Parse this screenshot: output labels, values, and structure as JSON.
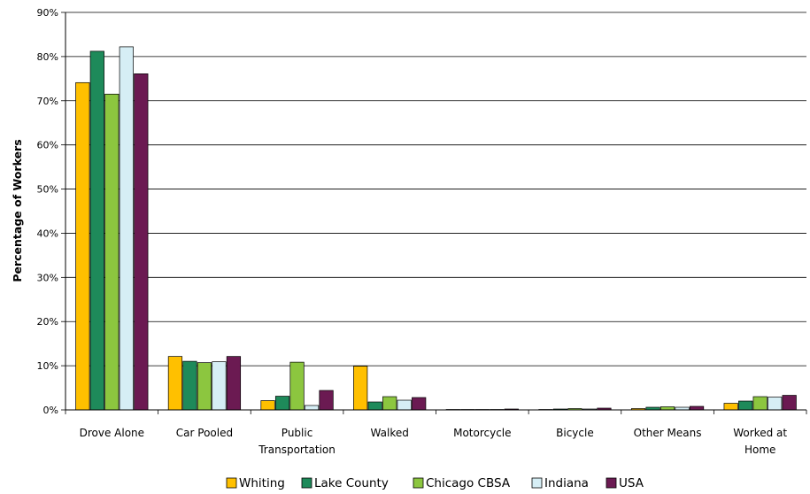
{
  "chart_data": {
    "type": "bar",
    "title": "",
    "xlabel": "",
    "ylabel": "Percentage of Workers",
    "ylim": [
      0,
      90
    ],
    "y_ticks": [
      "0%",
      "10%",
      "20%",
      "30%",
      "40%",
      "50%",
      "60%",
      "70%",
      "80%",
      "90%"
    ],
    "grid": true,
    "legend_position": "bottom",
    "categories": [
      [
        "Drove Alone"
      ],
      [
        "Car Pooled"
      ],
      [
        "Public",
        "Transportation"
      ],
      [
        "Walked"
      ],
      [
        "Motorcycle"
      ],
      [
        "Bicycle"
      ],
      [
        "Other Means"
      ],
      [
        "Worked at",
        "Home"
      ]
    ],
    "series": [
      {
        "name": "Whiting",
        "color": "#ffc000",
        "values": [
          74.1,
          12.1,
          2.1,
          9.9,
          0.1,
          0.1,
          0.3,
          1.5
        ]
      },
      {
        "name": "Lake County",
        "color": "#1e8a5a",
        "values": [
          81.2,
          11.0,
          3.1,
          1.8,
          0.1,
          0.2,
          0.6,
          2.0
        ]
      },
      {
        "name": "Chicago CBSA",
        "color": "#8cc63f",
        "values": [
          71.5,
          10.7,
          10.8,
          3.0,
          0.1,
          0.3,
          0.7,
          3.0
        ]
      },
      {
        "name": "Indiana",
        "color": "#d6eef5",
        "values": [
          82.2,
          10.9,
          1.0,
          2.2,
          0.1,
          0.2,
          0.6,
          2.9
        ]
      },
      {
        "name": "USA",
        "color": "#6b1a52",
        "values": [
          76.1,
          12.1,
          4.4,
          2.8,
          0.2,
          0.4,
          0.8,
          3.3
        ]
      }
    ]
  }
}
